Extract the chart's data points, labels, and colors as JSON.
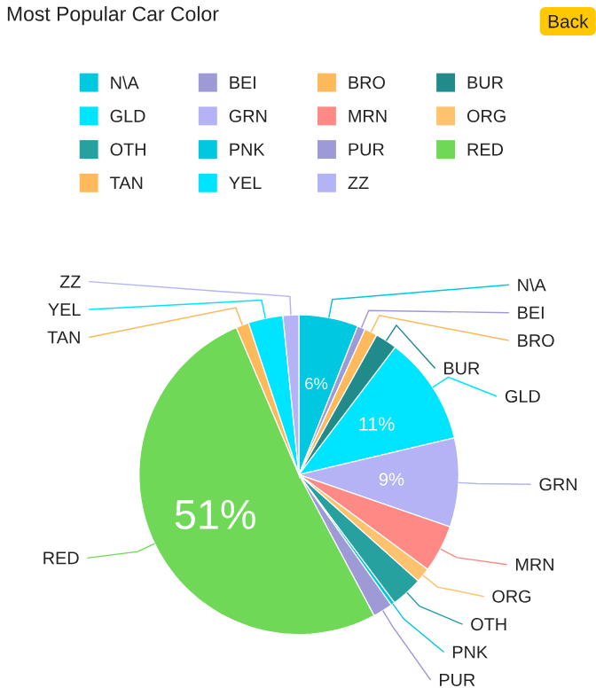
{
  "chart_data": {
    "type": "pie",
    "title": "Most Popular Car Color",
    "categories": [
      "N\\A",
      "BEI",
      "BRO",
      "BUR",
      "GLD",
      "GRN",
      "MRN",
      "ORG",
      "OTH",
      "PNK",
      "PUR",
      "RED",
      "TAN",
      "YEL",
      "ZZ"
    ],
    "values": [
      6,
      0.8,
      1.3,
      2.2,
      11,
      9,
      4.8,
      1.5,
      3.2,
      0.4,
      2,
      51.4,
      1.3,
      3.5,
      1.6
    ],
    "colors": [
      "#00c8e0",
      "#9e9ad6",
      "#fdb95a",
      "#218b8b",
      "#00e5ff",
      "#b3b3f5",
      "#ff8a85",
      "#ffc26e",
      "#27a0a0",
      "#00c8e0",
      "#9e9ad6",
      "#6fd957",
      "#fdb95a",
      "#00e5ff",
      "#b3b3f5"
    ],
    "value_labels": [
      "6%",
      null,
      null,
      null,
      "11%",
      "9%",
      null,
      null,
      null,
      null,
      null,
      "51%",
      null,
      null,
      null
    ],
    "legend": "top",
    "annotations": [
      "Back"
    ]
  }
}
